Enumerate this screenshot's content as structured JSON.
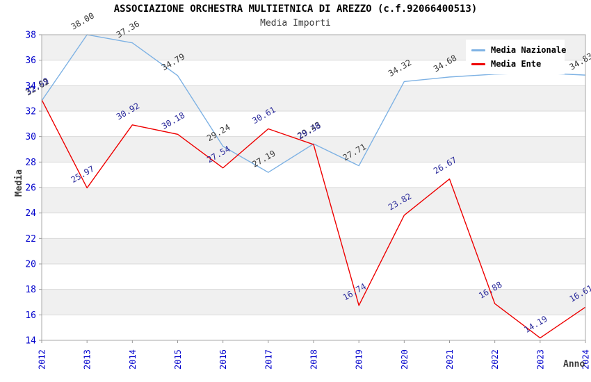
{
  "title": "ASSOCIAZIONE ORCHESTRA MULTIETNICA DI AREZZO (c.f.92066400513)",
  "subtitle": "Media Importi",
  "chart_data": {
    "type": "line",
    "x": [
      2012,
      2013,
      2014,
      2015,
      2016,
      2017,
      2018,
      2019,
      2020,
      2021,
      2022,
      2023,
      2024
    ],
    "xlabel": "Anno",
    "ylabel": "Media",
    "ylim": [
      14,
      38
    ],
    "ytick_step": 2,
    "grid": "horizontal gridlines with alternating gray bands",
    "legend_position": "top-right",
    "series": [
      {
        "name": "Media Nazionale",
        "color": "#7eb2e4",
        "label_color": "#3a3a3a",
        "values": [
          32.82,
          38.0,
          37.36,
          34.79,
          29.24,
          27.19,
          29.43,
          27.71,
          34.32,
          34.68,
          34.9,
          35.0,
          34.83
        ],
        "point_labels": [
          "32.82",
          "38.00",
          "37.36",
          "34.79",
          "29.24",
          "27.19",
          "29.43",
          "27.71",
          "34.32",
          "34.68",
          "",
          "",
          "34.83"
        ]
      },
      {
        "name": "Media Ente",
        "color": "#ee0000",
        "label_color": "#2b2b9b",
        "values": [
          32.89,
          25.97,
          30.92,
          30.18,
          27.54,
          30.61,
          29.38,
          16.74,
          23.82,
          26.67,
          16.88,
          14.19,
          16.61
        ],
        "point_labels": [
          "32.89",
          "25.97",
          "30.92",
          "30.18",
          "27.54",
          "30.61",
          "29.38",
          "16.74",
          "23.82",
          "26.67",
          "16.88",
          "14.19",
          "16.61"
        ]
      }
    ]
  },
  "colors": {
    "tick_label": "#0000cc",
    "grid_line": "#d9d9d9",
    "band": "#f0f0f0",
    "plot_border": "#aaaaaa",
    "tick_mark": "#999999",
    "axis_title": "#3a3a3a",
    "legend_bg": "#ffffff"
  }
}
